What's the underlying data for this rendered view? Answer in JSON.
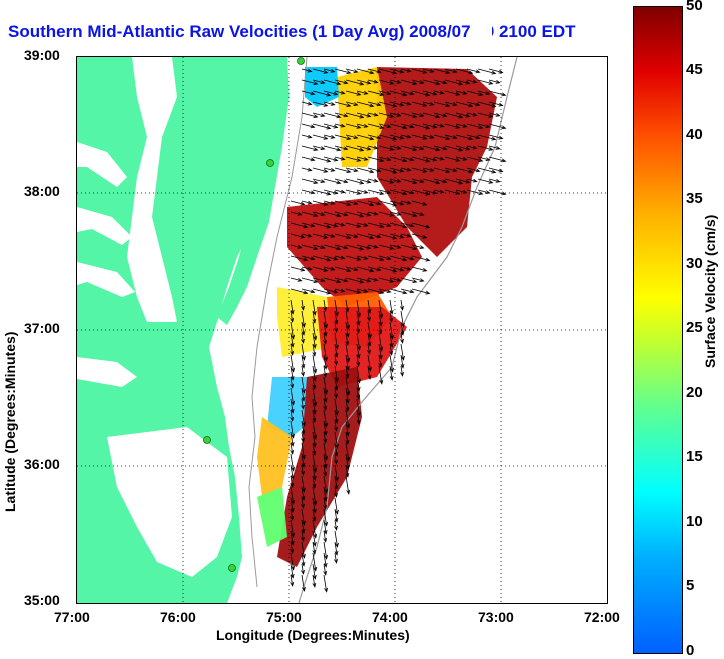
{
  "title": "Southern Mid-Atlantic Raw Velocities (1 Day Avg) 2008/07/09 2100 EDT",
  "colors": {
    "land": "#55f5a8",
    "title": "#0a14e6",
    "grid": "#000000",
    "arrows": "#000000",
    "stations": "#3ad13a",
    "bathymetry": "#9a9a9a"
  },
  "axes": {
    "xlabel": "Longitude (Degrees:Minutes)",
    "ylabel": "Latitude (Degrees:Minutes)",
    "x_ticks": [
      "77:00",
      "76:00",
      "75:00",
      "74:00",
      "73:00",
      "72:00"
    ],
    "y_ticks": [
      "39:00",
      "38:00",
      "37:00",
      "36:00",
      "35:00"
    ],
    "lon_range": [
      -77,
      -72
    ],
    "lat_range": [
      35,
      39
    ]
  },
  "colorbar": {
    "label": "Surface Velocity (cm/s)",
    "ticks": [
      "50",
      "45",
      "40",
      "35",
      "30",
      "25",
      "20",
      "15",
      "10",
      "5",
      "0"
    ],
    "range": [
      0,
      50
    ],
    "colormap": "jet"
  }
}
